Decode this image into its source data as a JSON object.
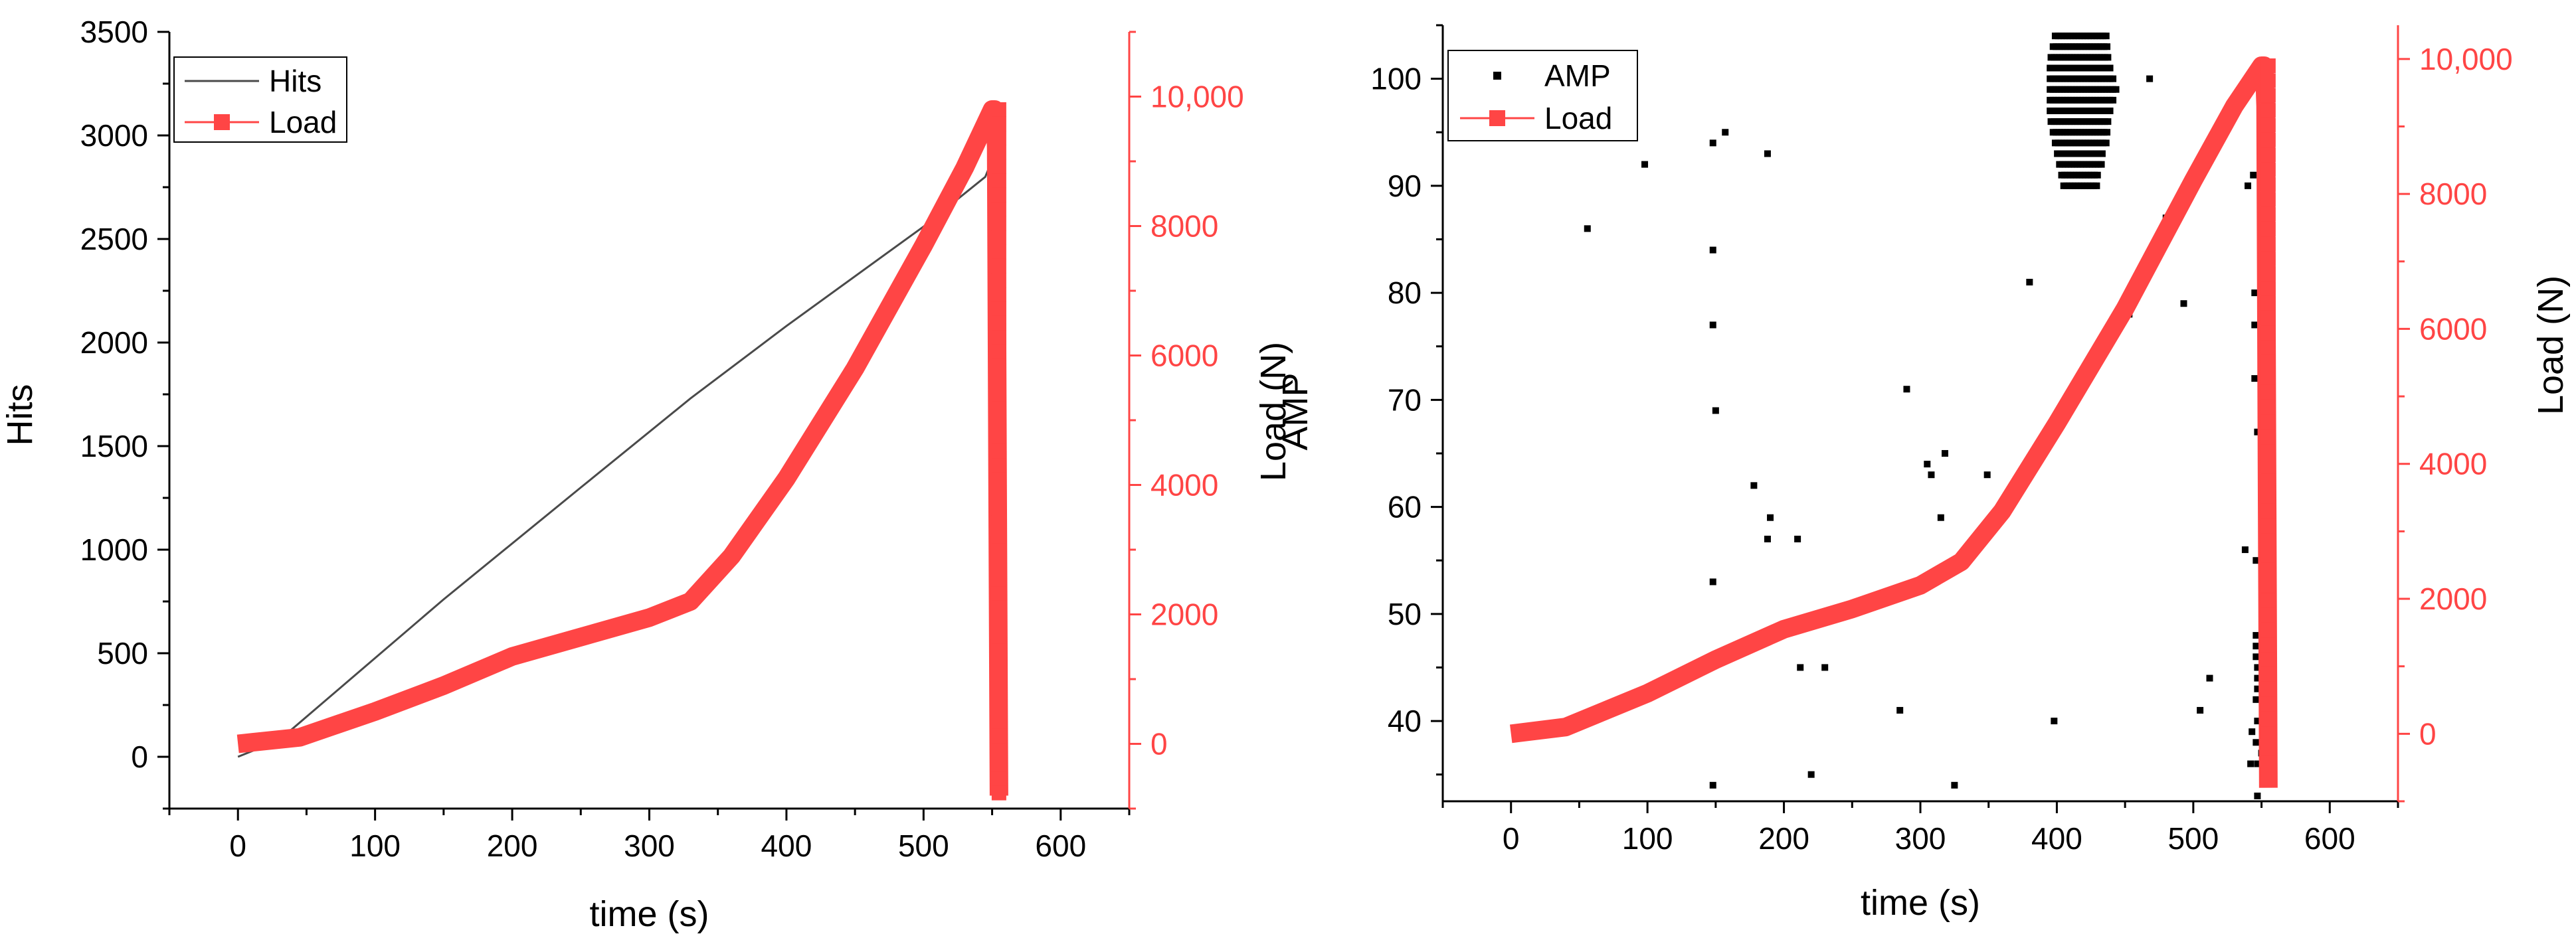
{
  "colors": {
    "hits": "#4a4a4a",
    "load": "#ff4545",
    "amp": "#000000",
    "axis": "#000000"
  },
  "chart_data": [
    {
      "type": "line",
      "xlabel": "time (s)",
      "ylabel": "Hits",
      "y2label": "Load (N)",
      "xlim": [
        -50,
        650
      ],
      "ylim": [
        -250,
        3500
      ],
      "y2lim": [
        -1000,
        11000
      ],
      "xticks": [
        0,
        100,
        200,
        300,
        400,
        500,
        600
      ],
      "yticks": [
        0,
        500,
        1000,
        1500,
        2000,
        2500,
        3000,
        3500
      ],
      "y2ticks": [
        0,
        2000,
        4000,
        6000,
        8000,
        10000
      ],
      "y2ticklabels": [
        "0",
        "2000",
        "4000",
        "6000",
        "8000",
        "10,000"
      ],
      "legend": [
        {
          "key": "hits",
          "label": "Hits"
        },
        {
          "key": "load",
          "label": "Load"
        }
      ],
      "series": [
        {
          "name": "Hits",
          "axis": "y",
          "style": "line",
          "x": [
            0,
            30,
            150,
            250,
            330,
            400,
            500,
            545,
            550,
            551
          ],
          "y": [
            0,
            80,
            760,
            1300,
            1730,
            2080,
            2560,
            2800,
            2880,
            3050
          ]
        },
        {
          "name": "Load",
          "axis": "y2",
          "style": "thick",
          "x": [
            0,
            45,
            100,
            150,
            200,
            250,
            300,
            330,
            360,
            400,
            450,
            500,
            530,
            550,
            552,
            553,
            554,
            555
          ],
          "y": [
            0,
            100,
            500,
            900,
            1350,
            1650,
            1950,
            2200,
            2900,
            4100,
            5800,
            7700,
            8900,
            9800,
            9800,
            9200,
            4000,
            -800
          ]
        }
      ]
    },
    {
      "type": "scatter",
      "xlabel": "time (s)",
      "ylabel": "AMP",
      "y2label": "Load (N)",
      "xlim": [
        -50,
        650
      ],
      "ylim": [
        32.5,
        105
      ],
      "y2lim": [
        -1000,
        10500
      ],
      "xticks": [
        0,
        100,
        200,
        300,
        400,
        500,
        600
      ],
      "yticks": [
        40,
        50,
        60,
        70,
        80,
        90,
        100
      ],
      "y2ticks": [
        0,
        2000,
        4000,
        6000,
        8000,
        10000
      ],
      "y2ticklabels": [
        "0",
        "2000",
        "4000",
        "6000",
        "8000",
        "10,000"
      ],
      "legend": [
        {
          "key": "amp",
          "label": "AMP"
        },
        {
          "key": "load",
          "label": "Load"
        }
      ],
      "series": [
        {
          "name": "AMP",
          "axis": "y",
          "style": "points",
          "points": [
            [
              56,
              86
            ],
            [
              98,
              92
            ],
            [
              148,
              94
            ],
            [
              148,
              84
            ],
            [
              148,
              77
            ],
            [
              150,
              69
            ],
            [
              148,
              53
            ],
            [
              148,
              34
            ],
            [
              157,
              95
            ],
            [
              178,
              62
            ],
            [
              188,
              93
            ],
            [
              188,
              57
            ],
            [
              190,
              59
            ],
            [
              210,
              57
            ],
            [
              212,
              45
            ],
            [
              220,
              35
            ],
            [
              230,
              45
            ],
            [
              285,
              41
            ],
            [
              290,
              71
            ],
            [
              305,
              64
            ],
            [
              308,
              63
            ],
            [
              315,
              59
            ],
            [
              318,
              65
            ],
            [
              325,
              34
            ],
            [
              349,
              63
            ],
            [
              380,
              81
            ],
            [
              398,
              40
            ],
            [
              468,
              100
            ],
            [
              480,
              87
            ],
            [
              493,
              79
            ],
            [
              453,
              78
            ],
            [
              505,
              41
            ],
            [
              512,
              44
            ],
            [
              538,
              56
            ],
            [
              540,
              90
            ],
            [
              542,
              36
            ],
            [
              543,
              39
            ],
            [
              544,
              91
            ],
            [
              545,
              80
            ],
            [
              545,
              77
            ],
            [
              545,
              72
            ],
            [
              546,
              55
            ],
            [
              546,
              48
            ],
            [
              546,
              47
            ],
            [
              546,
              46
            ],
            [
              546,
              42
            ],
            [
              546,
              38
            ],
            [
              547,
              33
            ],
            [
              547,
              36
            ],
            [
              547,
              67
            ],
            [
              547,
              45
            ],
            [
              547,
              44
            ],
            [
              547,
              43
            ],
            [
              547,
              40
            ],
            [
              550,
              37
            ]
          ],
          "cluster": {
            "x": [
              395,
              445
            ],
            "y": [
              90,
              104
            ]
          }
        },
        {
          "name": "Load",
          "axis": "y2",
          "style": "thick",
          "x": [
            0,
            40,
            100,
            150,
            200,
            250,
            300,
            330,
            360,
            400,
            450,
            500,
            530,
            550,
            552,
            553,
            554,
            555
          ],
          "y": [
            0,
            100,
            600,
            1100,
            1550,
            1850,
            2200,
            2550,
            3300,
            4600,
            6300,
            8200,
            9300,
            9900,
            9900,
            9300,
            4000,
            -800
          ]
        }
      ]
    }
  ]
}
